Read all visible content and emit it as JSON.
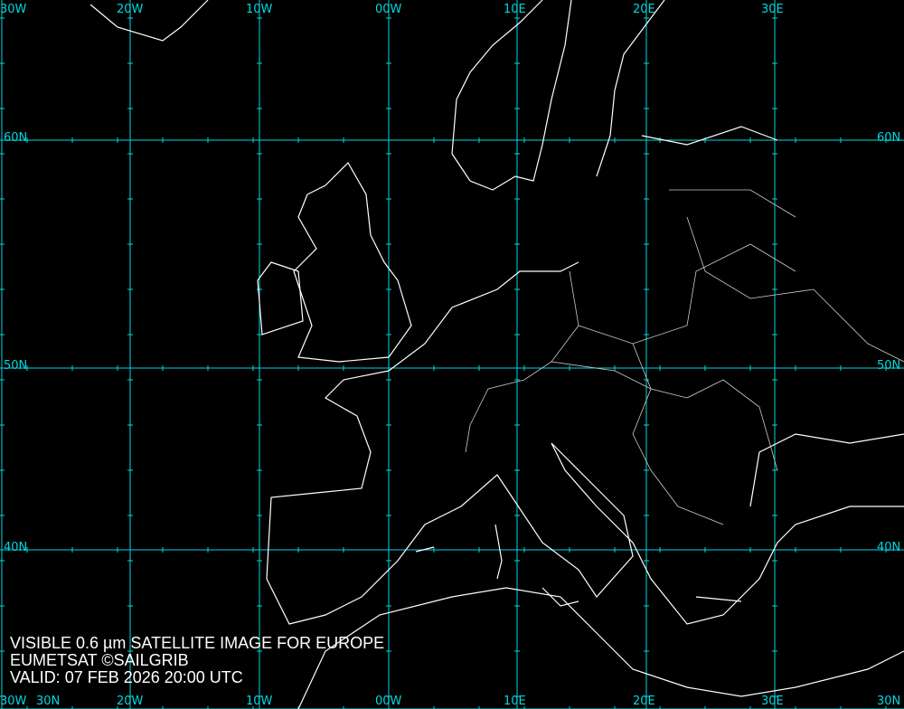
{
  "caption": {
    "line1": "VISIBLE 0.6 µm SATELLITE IMAGE FOR EUROPE",
    "line2": "EUMETSAT ©SAILGRIB",
    "line3": "VALID:  07 FEB 2026 20:00 UTC"
  },
  "grid": {
    "color": "#00d8e0",
    "longitudes": [
      "30W",
      "20W",
      "10W",
      "00W",
      "10E",
      "20E",
      "30E"
    ],
    "latitudes": [
      "60N",
      "50N",
      "40N",
      "30N"
    ]
  },
  "colors": {
    "background": "#000000",
    "coastline": "#ffffff",
    "borders": "#cccccc"
  }
}
